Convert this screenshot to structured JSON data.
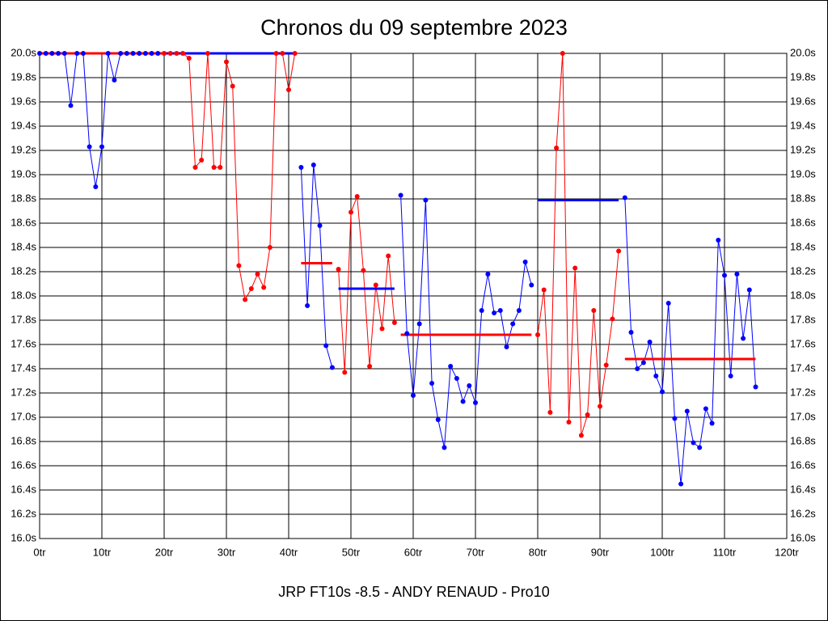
{
  "chart_data": {
    "type": "line",
    "title": "Chronos du 09 septembre 2023",
    "subtitle": "JRP FT10s -8.5 - ANDY RENAUD - Pro10",
    "xlim": [
      0,
      120
    ],
    "ylim": [
      16.0,
      20.0
    ],
    "grid": true,
    "xticks": [
      {
        "value": 0,
        "label": "0tr"
      },
      {
        "value": 10,
        "label": "10tr"
      },
      {
        "value": 20,
        "label": "20tr"
      },
      {
        "value": 30,
        "label": "30tr"
      },
      {
        "value": 40,
        "label": "40tr"
      },
      {
        "value": 50,
        "label": "50tr"
      },
      {
        "value": 60,
        "label": "60tr"
      },
      {
        "value": 70,
        "label": "70tr"
      },
      {
        "value": 80,
        "label": "80tr"
      },
      {
        "value": 90,
        "label": "90tr"
      },
      {
        "value": 100,
        "label": "100tr"
      },
      {
        "value": 110,
        "label": "110tr"
      },
      {
        "value": 120,
        "label": "120tr"
      }
    ],
    "yticks": [
      {
        "value": 16.0,
        "label": "16.0s"
      },
      {
        "value": 16.2,
        "label": "16.2s"
      },
      {
        "value": 16.4,
        "label": "16.4s"
      },
      {
        "value": 16.6,
        "label": "16.6s"
      },
      {
        "value": 16.8,
        "label": "16.8s"
      },
      {
        "value": 17.0,
        "label": "17.0s"
      },
      {
        "value": 17.2,
        "label": "17.2s"
      },
      {
        "value": 17.4,
        "label": "17.4s"
      },
      {
        "value": 17.6,
        "label": "17.6s"
      },
      {
        "value": 17.8,
        "label": "17.8s"
      },
      {
        "value": 18.0,
        "label": "18.0s"
      },
      {
        "value": 18.2,
        "label": "18.2s"
      },
      {
        "value": 18.4,
        "label": "18.4s"
      },
      {
        "value": 18.6,
        "label": "18.6s"
      },
      {
        "value": 18.8,
        "label": "18.8s"
      },
      {
        "value": 19.0,
        "label": "19.0s"
      },
      {
        "value": 19.2,
        "label": "19.2s"
      },
      {
        "value": 19.4,
        "label": "19.4s"
      },
      {
        "value": 19.6,
        "label": "19.6s"
      },
      {
        "value": 19.8,
        "label": "19.8s"
      },
      {
        "value": 20.0,
        "label": "20.0s"
      }
    ],
    "series": [
      {
        "color": "#0000ff",
        "x": [
          0,
          1,
          2,
          3,
          4,
          5,
          6,
          7,
          8,
          9,
          10,
          11,
          12,
          13,
          14,
          15,
          16,
          17,
          18,
          19
        ],
        "values": [
          20.0,
          20.0,
          20.0,
          20.0,
          20.0,
          19.57,
          20.0,
          20.0,
          19.23,
          18.9,
          19.23,
          20.0,
          19.78,
          20.0,
          20.0,
          20.0,
          20.0,
          20.0,
          20.0,
          20.0
        ]
      },
      {
        "color": "#ff0000",
        "x": [
          20,
          21,
          22,
          23,
          24,
          25,
          26,
          27,
          28,
          29,
          30,
          31,
          32,
          33,
          34,
          35,
          36,
          37,
          38,
          39,
          40,
          41
        ],
        "values": [
          20.0,
          20.0,
          20.0,
          20.0,
          19.96,
          19.06,
          19.12,
          20.0,
          19.06,
          19.06,
          19.93,
          19.73,
          18.25,
          17.97,
          18.06,
          18.18,
          18.07,
          18.4,
          20.0,
          20.0,
          19.7,
          20.0
        ]
      },
      {
        "color": "#0000ff",
        "x": [
          42,
          43,
          44,
          45,
          46,
          47
        ],
        "values": [
          19.06,
          17.92,
          19.08,
          18.58,
          17.59,
          17.41
        ]
      },
      {
        "color": "#ff0000",
        "x": [
          48,
          49,
          50,
          51,
          52,
          53,
          54,
          55,
          56,
          57
        ],
        "values": [
          18.22,
          17.37,
          18.69,
          18.82,
          18.21,
          17.42,
          18.09,
          17.73,
          18.33,
          17.78
        ]
      },
      {
        "color": "#0000ff",
        "x": [
          58,
          59,
          60,
          61,
          62,
          63,
          64,
          65,
          66,
          67,
          68,
          69,
          70,
          71,
          72,
          73,
          74,
          75,
          76,
          77,
          78,
          79
        ],
        "values": [
          18.83,
          17.69,
          17.18,
          17.77,
          18.79,
          17.28,
          16.98,
          16.75,
          17.42,
          17.32,
          17.13,
          17.26,
          17.12,
          17.88,
          18.18,
          17.86,
          17.88,
          17.58,
          17.77,
          17.88,
          18.28,
          18.09
        ]
      },
      {
        "color": "#ff0000",
        "x": [
          80,
          81,
          82,
          83,
          84,
          85,
          86,
          87,
          88,
          89,
          90,
          91,
          92,
          93
        ],
        "values": [
          17.68,
          18.05,
          17.04,
          19.22,
          20.0,
          16.96,
          18.23,
          16.85,
          17.02,
          17.88,
          17.09,
          17.43,
          17.81,
          18.37
        ]
      },
      {
        "color": "#0000ff",
        "x": [
          94,
          95,
          96,
          97,
          98,
          99,
          100,
          101,
          102,
          103,
          104,
          105,
          106,
          107,
          108,
          109,
          110,
          111,
          112,
          113,
          114,
          115
        ],
        "values": [
          18.81,
          17.7,
          17.4,
          17.45,
          17.62,
          17.34,
          17.21,
          17.94,
          16.99,
          16.45,
          17.05,
          16.79,
          16.75,
          17.07,
          16.95,
          18.46,
          18.17,
          17.34,
          18.18,
          17.65,
          18.05,
          17.25
        ]
      }
    ],
    "averages": [
      {
        "color": "#ff0000",
        "x": [
          0,
          20
        ],
        "value": 20.0
      },
      {
        "color": "#0000ff",
        "x": [
          20,
          41
        ],
        "value": 20.0
      },
      {
        "color": "#ff0000",
        "x": [
          42,
          47
        ],
        "value": 18.27
      },
      {
        "color": "#0000ff",
        "x": [
          48,
          57
        ],
        "value": 18.06
      },
      {
        "color": "#ff0000",
        "x": [
          58,
          79
        ],
        "value": 17.68
      },
      {
        "color": "#0000ff",
        "x": [
          80,
          93
        ],
        "value": 18.79
      },
      {
        "color": "#ff0000",
        "x": [
          94,
          115
        ],
        "value": 17.48
      }
    ]
  }
}
